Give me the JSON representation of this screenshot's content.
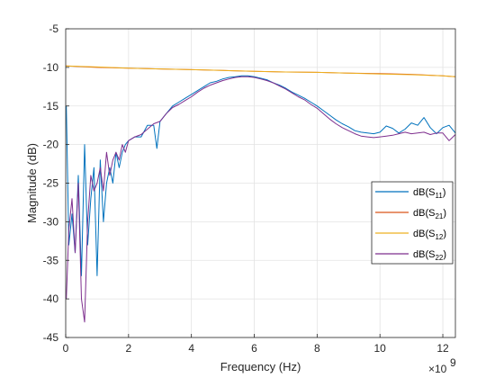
{
  "chart_data": {
    "type": "line",
    "xlabel": "Frequency (Hz)",
    "ylabel": "Magnitude (dB)",
    "x_exponent_label": "×10",
    "x_exponent_power": "9",
    "xlim": [
      0,
      12.4
    ],
    "ylim": [
      -45,
      -5
    ],
    "x_scale_note": "x values in units of 1e9 Hz",
    "grid": true,
    "legend_position": "right-middle",
    "x_ticks": [
      "0",
      "2",
      "4",
      "6",
      "8",
      "10",
      "12"
    ],
    "y_ticks": [
      "-5",
      "-10",
      "-15",
      "-20",
      "-25",
      "-30",
      "-35",
      "-40",
      "-45"
    ],
    "series": [
      {
        "name": "dB(S11)",
        "legend_base": "dB(S",
        "legend_sub": "11",
        "color": "#0072BD",
        "x": [
          0.02,
          0.1,
          0.2,
          0.3,
          0.4,
          0.5,
          0.6,
          0.7,
          0.8,
          0.9,
          1.0,
          1.1,
          1.2,
          1.3,
          1.4,
          1.5,
          1.6,
          1.7,
          1.8,
          1.9,
          2.0,
          2.2,
          2.4,
          2.6,
          2.8,
          2.9,
          3.0,
          3.2,
          3.4,
          3.6,
          3.8,
          4.0,
          4.2,
          4.4,
          4.6,
          4.8,
          5.0,
          5.2,
          5.4,
          5.6,
          5.8,
          6.0,
          6.2,
          6.4,
          6.6,
          6.8,
          7.0,
          7.2,
          7.4,
          7.6,
          7.8,
          8.0,
          8.2,
          8.4,
          8.6,
          8.8,
          9.0,
          9.2,
          9.4,
          9.6,
          9.8,
          10.0,
          10.2,
          10.4,
          10.6,
          10.8,
          11.0,
          11.2,
          11.4,
          11.6,
          11.8,
          12.0,
          12.2,
          12.4
        ],
        "y": [
          -15,
          -33,
          -29,
          -34,
          -24,
          -37,
          -20,
          -33,
          -27,
          -23,
          -37,
          -22,
          -30,
          -25,
          -23,
          -25,
          -21,
          -23,
          -21,
          -20,
          -19.5,
          -19,
          -19,
          -17.5,
          -17.5,
          -20.5,
          -17,
          -16,
          -15,
          -14.5,
          -14,
          -13.5,
          -13,
          -12.5,
          -12,
          -11.8,
          -11.5,
          -11.3,
          -11.2,
          -11.1,
          -11.1,
          -11.2,
          -11.4,
          -11.6,
          -12,
          -12.3,
          -12.7,
          -13.2,
          -13.6,
          -14,
          -14.5,
          -15,
          -15.6,
          -16.2,
          -16.8,
          -17.3,
          -17.7,
          -18.2,
          -18.4,
          -18.5,
          -18.6,
          -18.4,
          -17.6,
          -17.9,
          -18.5,
          -18,
          -17.2,
          -17.5,
          -16.5,
          -17.8,
          -18.6,
          -17.8,
          -17.5,
          -18.5
        ]
      },
      {
        "name": "dB(S21)",
        "legend_base": "dB(S",
        "legend_sub": "21",
        "color": "#D95319",
        "x": [
          0,
          1,
          2,
          3,
          4,
          5,
          6,
          7,
          8,
          9,
          10,
          11,
          12,
          12.4
        ],
        "y": [
          -9.8,
          -10,
          -10.1,
          -10.2,
          -10.3,
          -10.4,
          -10.5,
          -10.6,
          -10.65,
          -10.75,
          -10.8,
          -10.9,
          -11.1,
          -11.2
        ]
      },
      {
        "name": "dB(S12)",
        "legend_base": "dB(S",
        "legend_sub": "12",
        "color": "#EDB120",
        "x": [
          0,
          1,
          2,
          3,
          4,
          5,
          6,
          7,
          8,
          9,
          10,
          11,
          12,
          12.4
        ],
        "y": [
          -9.8,
          -9.95,
          -10.1,
          -10.2,
          -10.3,
          -10.4,
          -10.5,
          -10.6,
          -10.65,
          -10.75,
          -10.85,
          -10.95,
          -11.1,
          -11.2
        ]
      },
      {
        "name": "dB(S22)",
        "legend_base": "dB(S",
        "legend_sub": "22",
        "color": "#7E2F8E",
        "x": [
          0.02,
          0.1,
          0.2,
          0.3,
          0.4,
          0.5,
          0.6,
          0.7,
          0.8,
          0.9,
          1.0,
          1.1,
          1.2,
          1.3,
          1.4,
          1.5,
          1.6,
          1.7,
          1.8,
          1.9,
          2.0,
          2.2,
          2.4,
          2.6,
          2.8,
          3.0,
          3.2,
          3.4,
          3.6,
          3.8,
          4.0,
          4.2,
          4.4,
          4.6,
          4.8,
          5.0,
          5.2,
          5.4,
          5.6,
          5.8,
          6.0,
          6.2,
          6.4,
          6.6,
          6.8,
          7.0,
          7.2,
          7.4,
          7.6,
          7.8,
          8.0,
          8.2,
          8.4,
          8.6,
          8.8,
          9.0,
          9.2,
          9.4,
          9.6,
          9.8,
          10.0,
          10.2,
          10.4,
          10.6,
          10.8,
          11.0,
          11.2,
          11.4,
          11.6,
          11.8,
          12.0,
          12.2,
          12.4
        ],
        "y": [
          -40,
          -31,
          -27,
          -34,
          -25,
          -40,
          -43,
          -30,
          -24,
          -26,
          -25,
          -23,
          -26,
          -21,
          -24,
          -22,
          -21,
          -22,
          -20,
          -21,
          -19.5,
          -19,
          -18.7,
          -18,
          -17.3,
          -17,
          -16,
          -15.2,
          -14.8,
          -14.3,
          -13.8,
          -13.2,
          -12.7,
          -12.3,
          -12,
          -11.7,
          -11.5,
          -11.3,
          -11.2,
          -11.2,
          -11.3,
          -11.5,
          -11.7,
          -12,
          -12.4,
          -12.8,
          -13.3,
          -13.8,
          -14.2,
          -14.8,
          -15.3,
          -16,
          -16.7,
          -17.3,
          -17.8,
          -18.2,
          -18.6,
          -18.9,
          -19,
          -19.1,
          -19,
          -18.9,
          -18.8,
          -18.6,
          -18.4,
          -18.6,
          -18.5,
          -18.4,
          -18.7,
          -18.5,
          -18.5,
          -19.5,
          -18.7
        ]
      }
    ]
  }
}
